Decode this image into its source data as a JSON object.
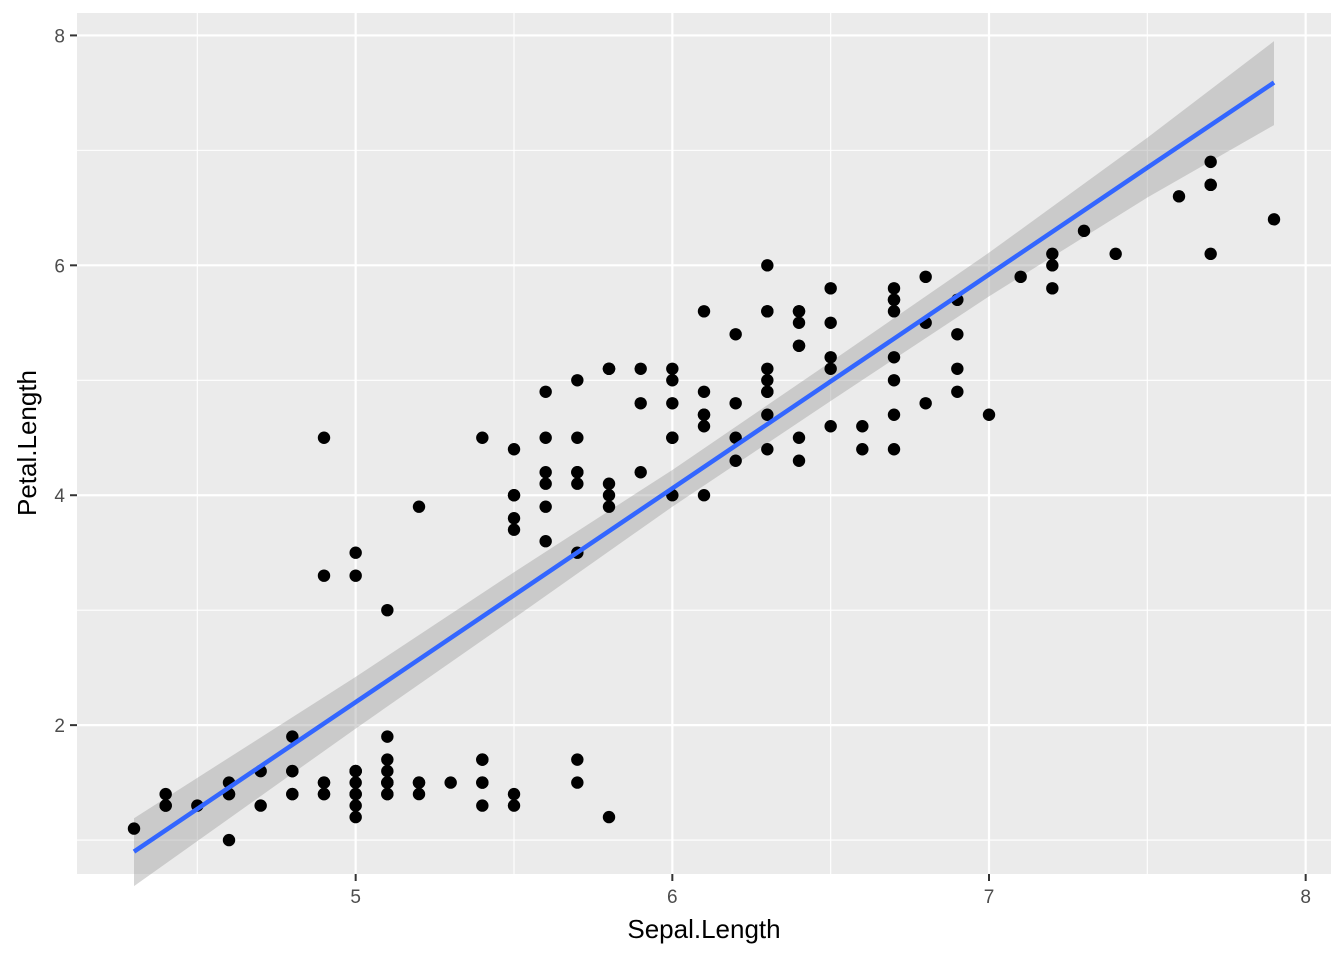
{
  "chart_data": {
    "type": "scatter",
    "title": "",
    "xlabel": "Sepal.Length",
    "ylabel": "Petal.Length",
    "xlim": [
      4.12,
      8.08
    ],
    "ylim": [
      0.705,
      8.195
    ],
    "x_ticks": [
      5,
      6,
      7,
      8
    ],
    "y_ticks": [
      2,
      4,
      6,
      8
    ],
    "grid": true,
    "legend": "none",
    "colors": {
      "panel": "#ebebeb",
      "grid": "#ffffff",
      "points": "#000000",
      "fit_line": "#3366ff",
      "confidence_band": "#999999"
    },
    "points": [
      [
        5.1,
        1.4
      ],
      [
        4.9,
        1.4
      ],
      [
        4.7,
        1.3
      ],
      [
        4.6,
        1.5
      ],
      [
        5.0,
        1.4
      ],
      [
        5.4,
        1.7
      ],
      [
        4.6,
        1.4
      ],
      [
        5.0,
        1.5
      ],
      [
        4.4,
        1.4
      ],
      [
        4.9,
        1.5
      ],
      [
        5.4,
        1.5
      ],
      [
        4.8,
        1.6
      ],
      [
        4.8,
        1.4
      ],
      [
        4.3,
        1.1
      ],
      [
        5.8,
        1.2
      ],
      [
        5.7,
        1.5
      ],
      [
        5.4,
        1.3
      ],
      [
        5.1,
        1.4
      ],
      [
        5.7,
        1.7
      ],
      [
        5.1,
        1.5
      ],
      [
        5.4,
        1.7
      ],
      [
        5.1,
        1.5
      ],
      [
        4.6,
        1.0
      ],
      [
        5.1,
        1.7
      ],
      [
        4.8,
        1.9
      ],
      [
        5.0,
        1.6
      ],
      [
        5.0,
        1.6
      ],
      [
        5.2,
        1.5
      ],
      [
        5.2,
        1.4
      ],
      [
        4.7,
        1.6
      ],
      [
        4.8,
        1.6
      ],
      [
        5.4,
        1.5
      ],
      [
        5.2,
        1.5
      ],
      [
        5.5,
        1.4
      ],
      [
        4.9,
        1.5
      ],
      [
        5.0,
        1.2
      ],
      [
        5.5,
        1.3
      ],
      [
        4.9,
        1.4
      ],
      [
        4.4,
        1.3
      ],
      [
        5.1,
        1.5
      ],
      [
        5.0,
        1.3
      ],
      [
        4.5,
        1.3
      ],
      [
        4.4,
        1.3
      ],
      [
        5.0,
        1.6
      ],
      [
        5.1,
        1.9
      ],
      [
        4.8,
        1.4
      ],
      [
        5.1,
        1.6
      ],
      [
        4.6,
        1.4
      ],
      [
        5.3,
        1.5
      ],
      [
        5.0,
        1.4
      ],
      [
        7.0,
        4.7
      ],
      [
        6.4,
        4.5
      ],
      [
        6.9,
        4.9
      ],
      [
        5.5,
        4.0
      ],
      [
        6.5,
        4.6
      ],
      [
        5.7,
        4.5
      ],
      [
        6.3,
        4.7
      ],
      [
        4.9,
        3.3
      ],
      [
        6.6,
        4.6
      ],
      [
        5.2,
        3.9
      ],
      [
        5.0,
        3.5
      ],
      [
        5.9,
        4.2
      ],
      [
        6.0,
        4.0
      ],
      [
        6.1,
        4.7
      ],
      [
        5.6,
        3.6
      ],
      [
        6.7,
        4.4
      ],
      [
        5.6,
        4.5
      ],
      [
        5.8,
        4.1
      ],
      [
        6.2,
        4.5
      ],
      [
        5.6,
        3.9
      ],
      [
        5.9,
        4.8
      ],
      [
        6.1,
        4.0
      ],
      [
        6.3,
        4.9
      ],
      [
        6.1,
        4.7
      ],
      [
        6.4,
        4.3
      ],
      [
        6.6,
        4.4
      ],
      [
        6.8,
        4.8
      ],
      [
        6.7,
        5.0
      ],
      [
        6.0,
        4.5
      ],
      [
        5.7,
        3.5
      ],
      [
        5.5,
        3.8
      ],
      [
        5.5,
        3.7
      ],
      [
        5.8,
        3.9
      ],
      [
        6.0,
        5.1
      ],
      [
        5.4,
        4.5
      ],
      [
        6.0,
        4.5
      ],
      [
        6.7,
        4.7
      ],
      [
        6.3,
        4.4
      ],
      [
        5.6,
        4.1
      ],
      [
        5.5,
        4.0
      ],
      [
        5.5,
        4.4
      ],
      [
        6.1,
        4.6
      ],
      [
        5.8,
        4.0
      ],
      [
        5.0,
        3.3
      ],
      [
        5.6,
        4.2
      ],
      [
        5.7,
        4.2
      ],
      [
        5.7,
        4.2
      ],
      [
        6.2,
        4.3
      ],
      [
        5.1,
        3.0
      ],
      [
        5.7,
        4.1
      ],
      [
        6.3,
        6.0
      ],
      [
        5.8,
        5.1
      ],
      [
        7.1,
        5.9
      ],
      [
        6.3,
        5.6
      ],
      [
        6.5,
        5.8
      ],
      [
        7.6,
        6.6
      ],
      [
        4.9,
        4.5
      ],
      [
        7.3,
        6.3
      ],
      [
        6.7,
        5.8
      ],
      [
        7.2,
        6.1
      ],
      [
        6.5,
        5.1
      ],
      [
        6.4,
        5.3
      ],
      [
        6.8,
        5.5
      ],
      [
        5.7,
        5.0
      ],
      [
        5.8,
        5.1
      ],
      [
        6.4,
        5.3
      ],
      [
        6.5,
        5.5
      ],
      [
        7.7,
        6.7
      ],
      [
        7.7,
        6.9
      ],
      [
        6.0,
        5.0
      ],
      [
        6.9,
        5.7
      ],
      [
        5.6,
        4.9
      ],
      [
        7.7,
        6.7
      ],
      [
        6.3,
        4.9
      ],
      [
        6.7,
        5.7
      ],
      [
        7.2,
        6.0
      ],
      [
        6.2,
        4.8
      ],
      [
        6.1,
        4.9
      ],
      [
        6.4,
        5.6
      ],
      [
        7.2,
        5.8
      ],
      [
        7.4,
        6.1
      ],
      [
        7.9,
        6.4
      ],
      [
        6.4,
        5.6
      ],
      [
        6.3,
        5.1
      ],
      [
        6.1,
        5.6
      ],
      [
        7.7,
        6.1
      ],
      [
        6.3,
        5.6
      ],
      [
        6.4,
        5.5
      ],
      [
        6.0,
        4.8
      ],
      [
        6.9,
        5.4
      ],
      [
        6.7,
        5.6
      ],
      [
        6.9,
        5.1
      ],
      [
        5.8,
        5.1
      ],
      [
        6.8,
        5.9
      ],
      [
        6.7,
        5.7
      ],
      [
        6.7,
        5.2
      ],
      [
        6.3,
        5.0
      ],
      [
        6.5,
        5.2
      ],
      [
        6.2,
        5.4
      ],
      [
        5.9,
        5.1
      ]
    ],
    "fit": {
      "method": "lm",
      "x": [
        4.3,
        5.0,
        5.5,
        6.0,
        6.5,
        7.0,
        7.5,
        7.9
      ],
      "y": [
        0.9,
        2.2,
        3.13,
        4.06,
        4.99,
        5.92,
        6.85,
        7.59
      ],
      "ci_lower": [
        0.6,
        1.97,
        2.93,
        3.9,
        4.82,
        5.73,
        6.59,
        7.22
      ],
      "ci_upper": [
        1.19,
        2.42,
        3.33,
        4.22,
        5.16,
        6.11,
        7.11,
        7.95
      ]
    }
  }
}
